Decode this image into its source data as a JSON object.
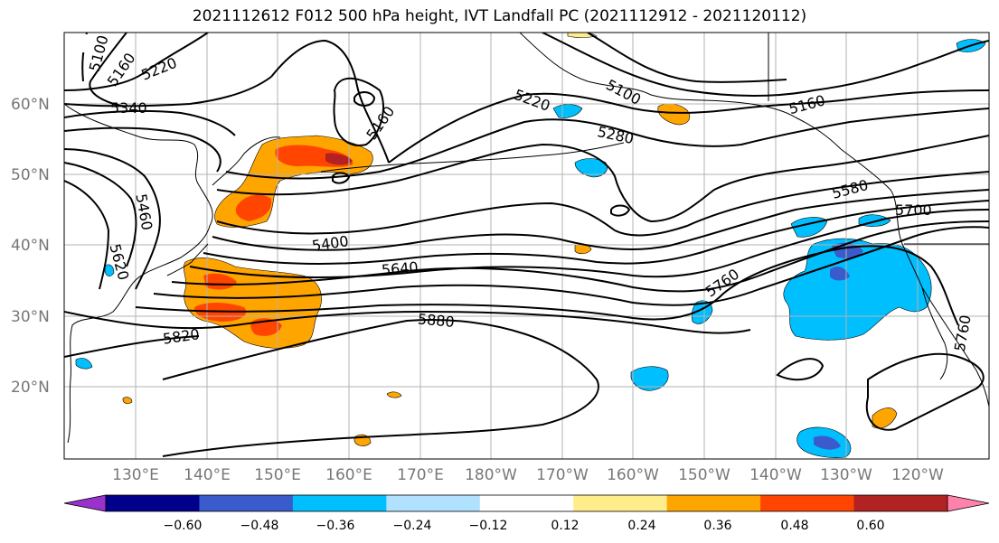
{
  "title": "2021112612 F012 500 hPa height, IVT Landfall PC (2021112912 - 2021120112)",
  "map": {
    "lat_labels": [
      "60°N",
      "50°N",
      "40°N",
      "30°N",
      "20°N"
    ],
    "lon_labels": [
      "130°E",
      "140°E",
      "150°E",
      "160°E",
      "170°E",
      "180°W",
      "170°W",
      "160°W",
      "150°W",
      "140°W",
      "130°W",
      "120°W"
    ],
    "contour_labels": [
      "5100",
      "5160",
      "5220",
      "5340",
      "5160",
      "5220",
      "5100",
      "5160",
      "5280",
      "5460",
      "5580",
      "5700",
      "5620",
      "5400",
      "5640",
      "5760",
      "5820",
      "5880",
      "5760"
    ],
    "colors": {
      "height_contour": "#000000",
      "grid": "#b3b3b3"
    }
  },
  "colorbar": {
    "tick_labels": [
      "−0.60",
      "−0.48",
      "−0.36",
      "−0.24",
      "−0.12",
      "0.12",
      "0.24",
      "0.36",
      "0.48",
      "0.60"
    ],
    "colors": [
      "#9932cc",
      "#00008b",
      "#3a5bcc",
      "#00bfff",
      "#b0e2ff",
      "#ffffff",
      "#ffec8b",
      "#ffa500",
      "#ff4500",
      "#b22222",
      "#ff82ab"
    ]
  }
}
